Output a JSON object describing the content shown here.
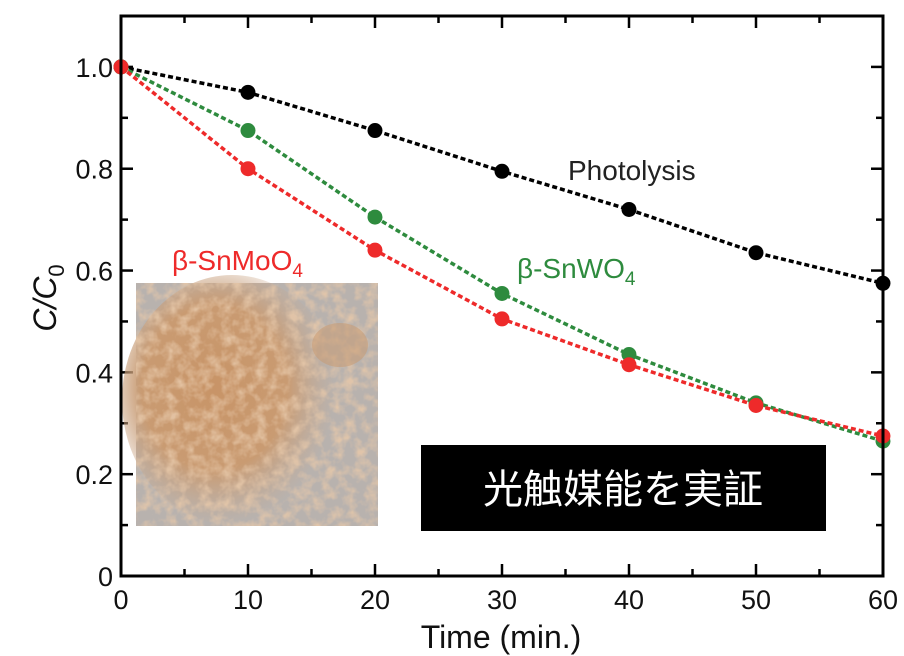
{
  "chart_data": {
    "type": "line",
    "xlabel": "Time (min.)",
    "ylabel_main": "C/C",
    "ylabel_sub": "0",
    "xlim": [
      0,
      60
    ],
    "ylim": [
      0,
      1.1
    ],
    "x": [
      0,
      10,
      20,
      30,
      40,
      50,
      60
    ],
    "x_tick_labels": [
      "0",
      "10",
      "20",
      "30",
      "40",
      "50",
      "60"
    ],
    "y_ticks": [
      0,
      0.2,
      0.4,
      0.6,
      0.8,
      1.0
    ],
    "y_tick_labels": [
      "0",
      "0.2",
      "0.4",
      "0.6",
      "0.8",
      "1.0"
    ],
    "grid": false,
    "series": [
      {
        "name": "Photolysis",
        "sub": "",
        "color": "#000000",
        "values": [
          1.0,
          0.95,
          0.875,
          0.795,
          0.72,
          0.635,
          0.575
        ]
      },
      {
        "name": "β-SnWO",
        "sub": "4",
        "color": "#2e8b3e",
        "values": [
          1.0,
          0.875,
          0.705,
          0.555,
          0.435,
          0.34,
          0.265
        ]
      },
      {
        "name": "β-SnMoO",
        "sub": "4",
        "color": "#ee2a2a",
        "values": [
          1.0,
          0.8,
          0.64,
          0.505,
          0.415,
          0.335,
          0.275
        ]
      }
    ],
    "inset_photo": "orange-brown powder sample photo",
    "annotation": "光触媒能を実証"
  }
}
